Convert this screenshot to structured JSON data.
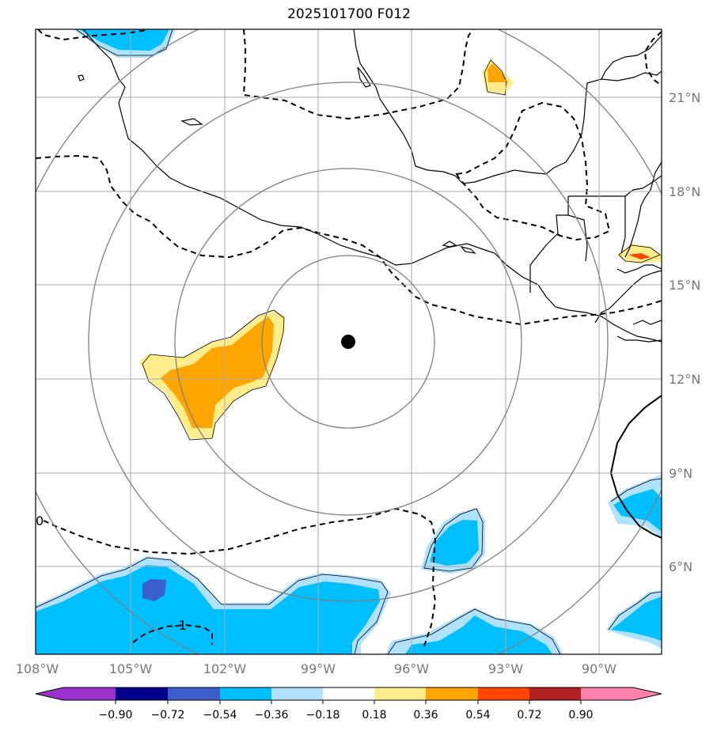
{
  "title": "2025101700 F012",
  "axes": {
    "lon_ticks": [
      "108°W",
      "105°W",
      "102°W",
      "99°W",
      "96°W",
      "93°W",
      "90°W"
    ],
    "lat_ticks": [
      "6°N",
      "9°N",
      "12°N",
      "15°N",
      "18°N",
      "21°N"
    ],
    "lon_range": [
      -108,
      -88
    ],
    "lat_range": [
      3.5,
      23.5
    ],
    "grid": true
  },
  "contour_labels": [
    "0",
    "-1"
  ],
  "colorbar": {
    "tick_labels": [
      "−0.90",
      "−0.72",
      "−0.54",
      "−0.36",
      "−0.18",
      "0.18",
      "0.36",
      "0.54",
      "0.72",
      "0.90"
    ],
    "colors": [
      "#9a32cd",
      "#00008b",
      "#3a5fcd",
      "#00bfff",
      "#b0e2ff",
      "#ffffff",
      "#ffec8b",
      "#ffa500",
      "#ff4500",
      "#b22222",
      "#ff82ab"
    ],
    "extend": "both"
  },
  "center_marker": {
    "lon": -98.0,
    "lat": 13.2
  },
  "range_rings": 4,
  "colors": {
    "grid": "#aaaaaa",
    "rings": "#808080",
    "tick_text": "#777777",
    "coast": "#000000"
  }
}
